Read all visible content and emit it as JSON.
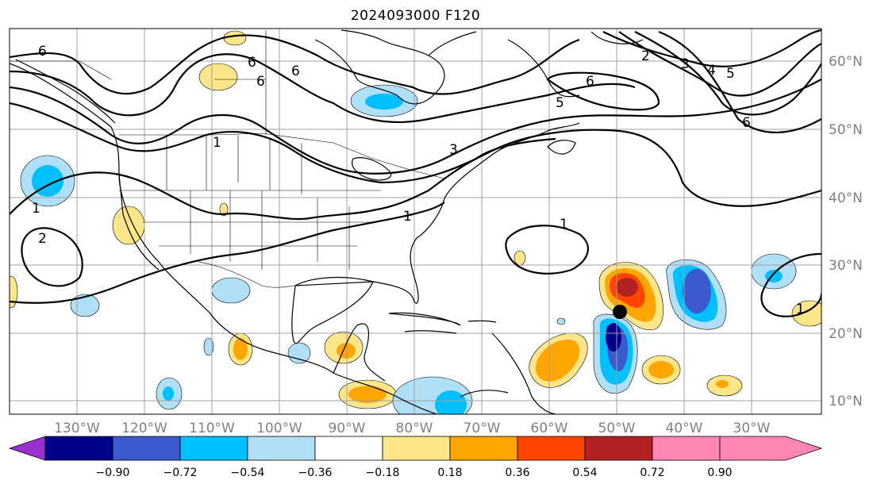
{
  "title": "2024093000 F120",
  "lon_labels": [
    "130°W",
    "120°W",
    "110°W",
    "100°W",
    "90°W",
    "80°W",
    "70°W",
    "60°W",
    "50°W",
    "40°W",
    "30°W"
  ],
  "lat_labels": [
    "60°N",
    "50°N",
    "40°N",
    "30°N",
    "20°N",
    "10°N"
  ],
  "colorbar": {
    "ticks": [
      "−0.90",
      "−0.72",
      "−0.54",
      "−0.36",
      "−0.18",
      "0.18",
      "0.36",
      "0.54",
      "0.72",
      "0.90"
    ],
    "colors": [
      "#9b30d0",
      "#00008b",
      "#3a5acd",
      "#00bfff",
      "#b0e0f8",
      "#ffffff",
      "#fde68a",
      "#ffa500",
      "#ff4500",
      "#b22222",
      "#ff85b3"
    ]
  },
  "contour_labels": [
    "6",
    "6",
    "6",
    "6",
    "6",
    "1",
    "1",
    "1",
    "1",
    "1",
    "2",
    "2",
    "3",
    "3",
    "4",
    "5",
    "5",
    "6"
  ],
  "marker": "storm-center"
}
